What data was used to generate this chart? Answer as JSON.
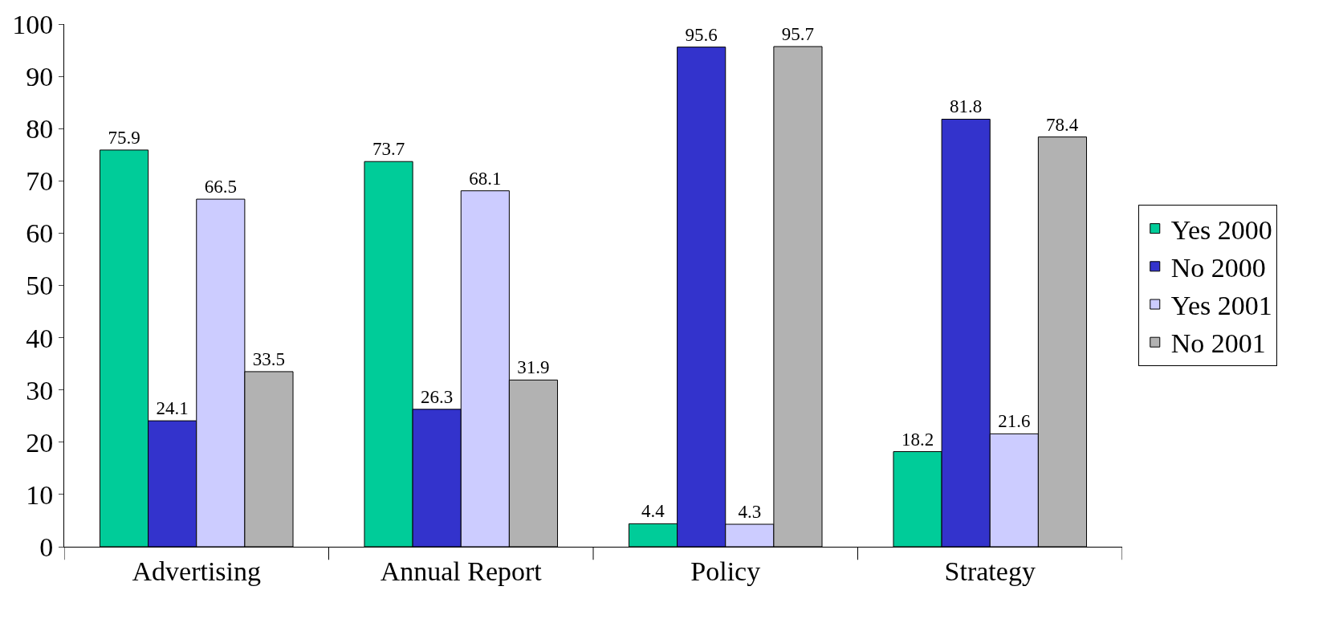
{
  "chart_data": {
    "type": "bar",
    "categories": [
      "Advertising",
      "Annual Report",
      "Policy",
      "Strategy"
    ],
    "series": [
      {
        "name": "Yes 2000",
        "color": "#00cc99",
        "values": [
          75.9,
          73.7,
          4.4,
          18.2
        ]
      },
      {
        "name": "No 2000",
        "color": "#3333cc",
        "values": [
          24.1,
          26.3,
          95.6,
          81.8
        ]
      },
      {
        "name": "Yes 2001",
        "color": "#ccccff",
        "values": [
          66.5,
          68.1,
          4.3,
          21.6
        ]
      },
      {
        "name": "No 2001",
        "color": "#b2b2b2",
        "values": [
          33.5,
          31.9,
          95.7,
          78.4
        ]
      }
    ],
    "ylim": [
      0,
      100
    ],
    "yticks": [
      0,
      10,
      20,
      30,
      40,
      50,
      60,
      70,
      80,
      90,
      100
    ],
    "data_labels": true,
    "grid": false,
    "legend": "right"
  }
}
